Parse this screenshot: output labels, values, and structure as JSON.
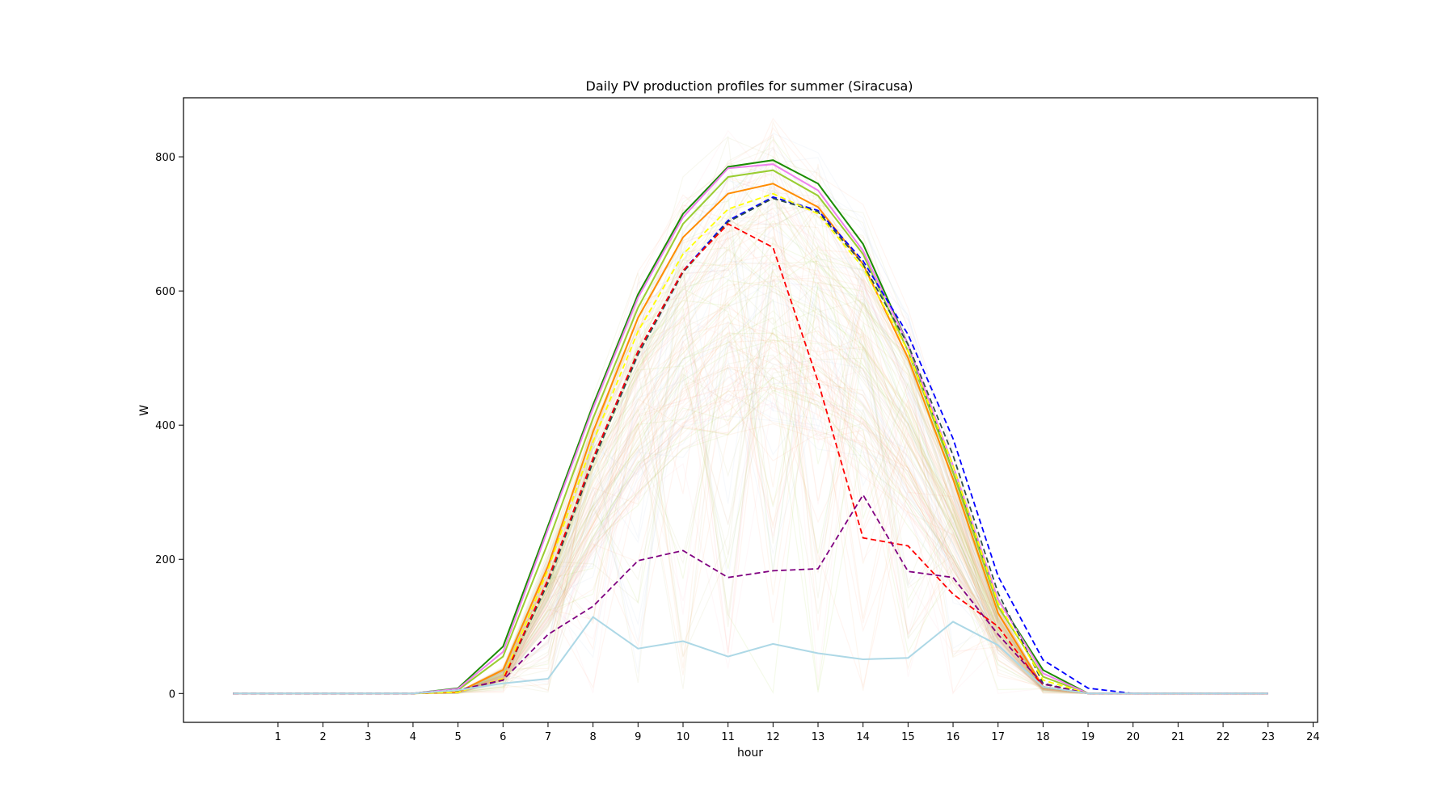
{
  "chart_data": {
    "type": "line",
    "title": "Daily PV production profiles for summer (Siracusa)",
    "xlabel": "hour",
    "ylabel": "W",
    "xlim": [
      -1.1,
      24.1
    ],
    "ylim": [
      -43,
      888
    ],
    "x_ticks": [
      1,
      2,
      3,
      4,
      5,
      6,
      7,
      8,
      9,
      10,
      11,
      12,
      13,
      14,
      15,
      16,
      17,
      18,
      19,
      20,
      21,
      22,
      23,
      24
    ],
    "y_ticks": [
      0,
      200,
      400,
      600,
      800
    ],
    "grid": false,
    "legend": "none",
    "x": [
      0,
      1,
      2,
      3,
      4,
      5,
      6,
      7,
      8,
      9,
      10,
      11,
      12,
      13,
      14,
      15,
      16,
      17,
      18,
      19,
      20,
      21,
      22,
      23
    ],
    "background_band": {
      "description": "many faint overlapping daily profiles",
      "colors": [
        "#ffa07a",
        "#f4a460",
        "#b0c4de",
        "#bdb76b",
        "#ffb6c1",
        "#9acd32"
      ]
    },
    "series": [
      {
        "color": "#1a8c00",
        "style": "solid",
        "values": [
          0,
          0,
          0,
          0,
          0,
          8,
          70,
          250,
          430,
          595,
          715,
          785,
          795,
          760,
          670,
          520,
          330,
          140,
          35,
          0,
          0,
          0,
          0,
          0
        ]
      },
      {
        "color": "#ff8c00",
        "style": "solid",
        "values": [
          0,
          0,
          0,
          0,
          0,
          2,
          35,
          190,
          390,
          560,
          680,
          745,
          760,
          725,
          640,
          500,
          320,
          120,
          10,
          0,
          0,
          0,
          0,
          0
        ]
      },
      {
        "color": "#9acd32",
        "style": "solid",
        "values": [
          0,
          0,
          0,
          0,
          0,
          5,
          55,
          225,
          410,
          575,
          700,
          770,
          780,
          742,
          655,
          510,
          330,
          130,
          25,
          0,
          0,
          0,
          0,
          0
        ]
      },
      {
        "color": "#ee82ee",
        "style": "solid",
        "values": [
          0,
          0,
          0,
          0,
          0,
          7,
          62,
          245,
          425,
          590,
          710,
          783,
          789,
          750,
          660,
          520,
          340,
          140,
          30,
          0,
          0,
          0,
          0,
          0
        ]
      },
      {
        "color": "#0000ff",
        "style": "dashed",
        "values": [
          0,
          0,
          0,
          0,
          0,
          5,
          20,
          170,
          350,
          510,
          630,
          705,
          740,
          720,
          645,
          535,
          380,
          175,
          50,
          8,
          0,
          0,
          0,
          0
        ]
      },
      {
        "color": "#2f4f4f",
        "style": "dashed",
        "values": [
          0,
          0,
          0,
          0,
          0,
          4,
          20,
          165,
          345,
          505,
          628,
          703,
          738,
          718,
          640,
          520,
          355,
          150,
          15,
          0,
          0,
          0,
          0,
          0
        ]
      },
      {
        "color": "#ffff00",
        "style": "dashed",
        "values": [
          0,
          0,
          0,
          0,
          0,
          2,
          22,
          185,
          375,
          540,
          655,
          722,
          745,
          715,
          635,
          510,
          340,
          135,
          20,
          0,
          0,
          0,
          0,
          0
        ]
      },
      {
        "color": "#ff0000",
        "style": "dashed",
        "values": [
          0,
          0,
          0,
          0,
          0,
          5,
          20,
          170,
          350,
          510,
          630,
          700,
          665,
          465,
          232,
          220,
          148,
          100,
          10,
          0,
          0,
          0,
          0,
          0
        ]
      },
      {
        "color": "#800080",
        "style": "dashed",
        "values": [
          0,
          0,
          0,
          0,
          0,
          5,
          20,
          88,
          130,
          198,
          213,
          173,
          183,
          186,
          296,
          182,
          173,
          88,
          14,
          0,
          0,
          0,
          0,
          0
        ]
      },
      {
        "color": "#add8e6",
        "style": "solid",
        "values": [
          0,
          0,
          0,
          0,
          0,
          5,
          15,
          22,
          114,
          67,
          78,
          55,
          74,
          60,
          51,
          53,
          107,
          72,
          10,
          0,
          0,
          0,
          0,
          0
        ]
      }
    ]
  }
}
